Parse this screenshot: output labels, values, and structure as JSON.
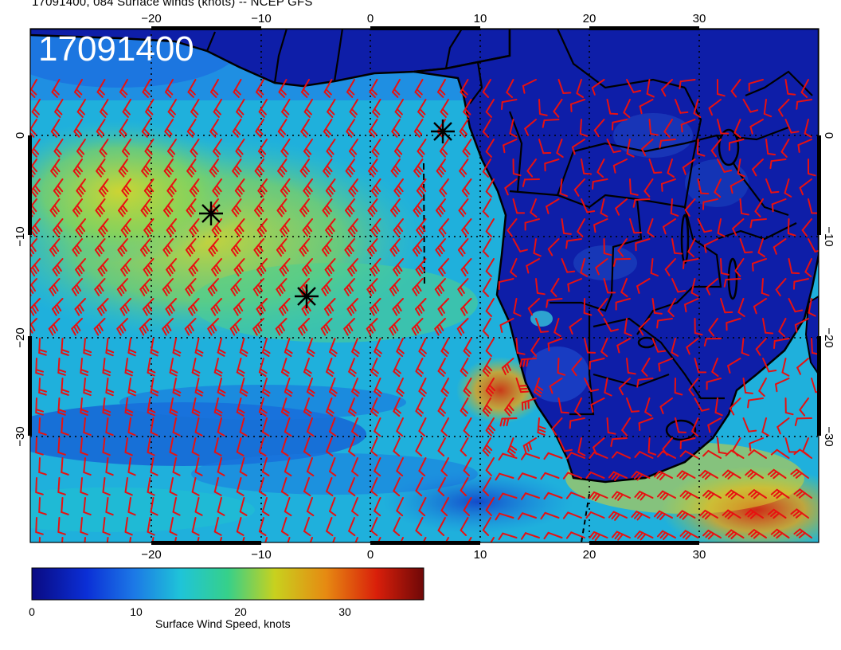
{
  "title": "17091400, 084 Surface winds (knots) -- NCEP GFS",
  "datetime_stamp": "17091400",
  "colorbar": {
    "label": "Surface Wind Speed, knots",
    "ticks": [
      "0",
      "10",
      "20",
      "30"
    ],
    "colors": [
      "#0a0a82",
      "#0b2fd6",
      "#1c78e6",
      "#1fc4d8",
      "#36d08a",
      "#c8d11e",
      "#e68a12",
      "#d91f0a",
      "#6e0808"
    ]
  },
  "map": {
    "lon_ticks_top": [
      "−20",
      "−10",
      "0",
      "10",
      "20",
      "30"
    ],
    "lon_ticks_bottom": [
      "−20",
      "−10",
      "0",
      "10",
      "20",
      "30"
    ],
    "lat_ticks_left": [
      "0",
      "−10",
      "−20",
      "−30"
    ],
    "lat_ticks_right": [
      "0",
      "−10",
      "−20",
      "−30"
    ],
    "barb_color": "#e81010",
    "land_color": "#0e1ea8",
    "storm_symbol": "black-asterisk",
    "storm_markers": [
      "marker-1",
      "marker-2",
      "marker-3"
    ]
  }
}
